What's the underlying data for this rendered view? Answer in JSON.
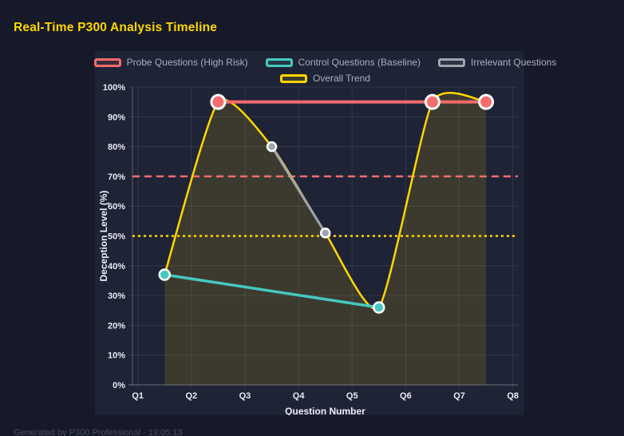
{
  "page": {
    "title": "Real-Time P300 Analysis Timeline",
    "footer": "Generated by P300 Professional - 19:05:13"
  },
  "colors": {
    "title": "#FFD700",
    "background": "#161927",
    "panel": "#1F2336",
    "grid": "rgba(255,255,255,0.09)",
    "axis_border": "rgba(255,255,255,0.28)",
    "tick_text": "#E8EAF1",
    "axis_title_text": "#EDEFF5",
    "legend_text": "#A9AFBD",
    "point_border": "#FFFFFF",
    "footer_text": "#474D63"
  },
  "chart_data": {
    "type": "line",
    "title": "",
    "xlabel": "Question Number",
    "ylabel": "Deception Level (%)",
    "x_tick_labels": [
      "Q1",
      "Q2",
      "Q3",
      "Q4",
      "Q5",
      "Q6",
      "Q7",
      "Q8"
    ],
    "x_range": [
      1,
      8
    ],
    "ylim": [
      0,
      100
    ],
    "y_ticks": [
      0,
      10,
      20,
      30,
      40,
      50,
      60,
      70,
      80,
      90,
      100
    ],
    "y_tick_suffix": "%",
    "grid": true,
    "legend_position": "top",
    "legend_rows": [
      [
        0,
        1,
        2
      ],
      [
        3
      ]
    ],
    "series": [
      {
        "name": "Probe Questions (High Risk)",
        "color": "#F56C6C",
        "x": [
          2.5,
          6.5,
          7.5
        ],
        "y": [
          95,
          95,
          95
        ],
        "line_width": 4,
        "point_radius": 8.5,
        "smooth": false,
        "fill": false,
        "show_points": true
      },
      {
        "name": "Control Questions (Baseline)",
        "color": "#45C9BF",
        "x": [
          1.5,
          5.5
        ],
        "y": [
          37,
          26
        ],
        "line_width": 3.5,
        "point_radius": 6.5,
        "smooth": false,
        "fill": false,
        "show_points": true
      },
      {
        "name": "Irrelevant Questions",
        "color": "#9FA4AE",
        "x": [
          3.5,
          4.5
        ],
        "y": [
          80,
          51
        ],
        "line_width": 3,
        "point_radius": 5.5,
        "smooth": false,
        "fill": false,
        "show_points": true
      },
      {
        "name": "Overall Trend",
        "color": "#FFD700",
        "x": [
          1.5,
          2.5,
          3.5,
          4.5,
          5.5,
          6.5,
          7.5
        ],
        "y": [
          37,
          95,
          80,
          51,
          26,
          95,
          95
        ],
        "line_width": 2.5,
        "point_radius": 0,
        "smooth": true,
        "fill": true,
        "fill_alpha": 0.13,
        "show_points": false
      }
    ],
    "thresholds": [
      {
        "y": 70,
        "color": "#F56C6C",
        "dash": "9 6",
        "width": 2.5
      },
      {
        "y": 50,
        "color": "#FFD700",
        "dash": "3 4",
        "width": 2.5
      }
    ]
  }
}
